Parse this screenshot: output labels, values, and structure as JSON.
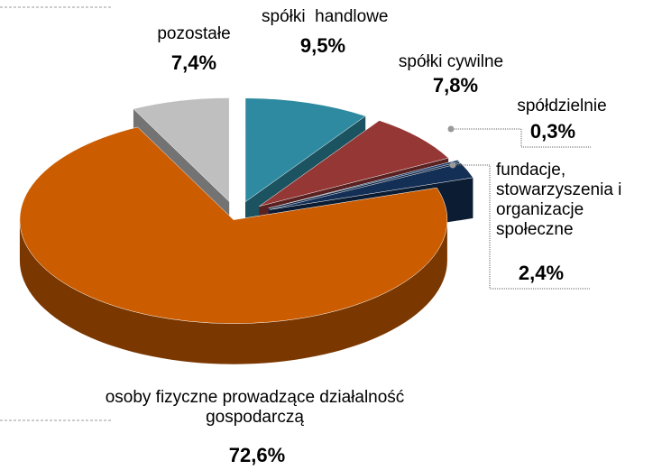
{
  "chart_data": {
    "type": "pie3d",
    "categories": [
      "spółki  handlowe",
      "spółki cywilne",
      "spółdzielnie",
      "fundacje, stowarzyszenia i organizacje społeczne",
      "osoby fizyczne prowadzące działalność gospodarczą",
      "pozostałe"
    ],
    "values": [
      9.5,
      7.8,
      0.3,
      2.4,
      72.6,
      7.4
    ],
    "value_labels": [
      "9,5%",
      "7,8%",
      "0,3%",
      "2,4%",
      "72,6%",
      "7,4%"
    ],
    "colors": [
      "#2e8aa0",
      "#953735",
      "#1f3f6e",
      "#132f55",
      "#cc5c00",
      "#bfbfbf"
    ]
  }
}
